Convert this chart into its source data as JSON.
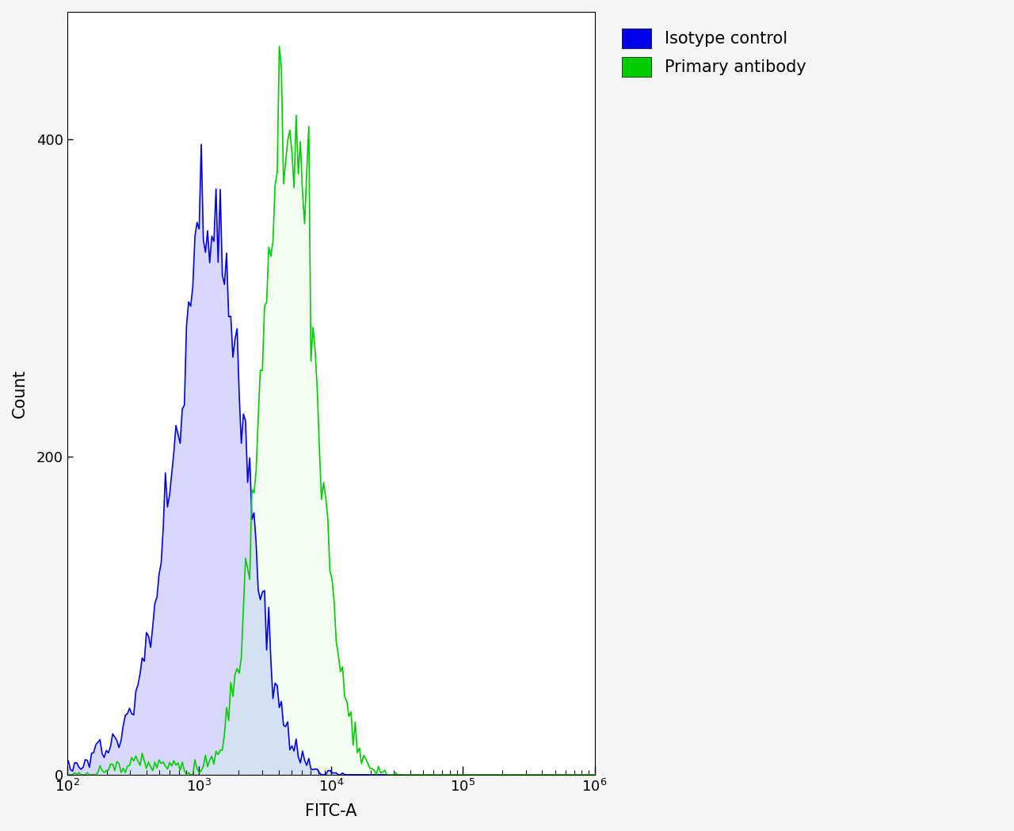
{
  "isotype_color": "#0000EE",
  "antibody_color": "#00CC00",
  "isotype_fill": "#AAAAFF",
  "antibody_fill": "#CCFFCC",
  "isotype_fill_alpha": 0.45,
  "antibody_fill_alpha": 0.25,
  "isotype_label": "Isotype control",
  "antibody_label": "Primary antibody",
  "xlabel": "FITC-A",
  "ylabel": "Count",
  "xlim_log": [
    2,
    6
  ],
  "ylim": [
    0,
    480
  ],
  "yticks": [
    0,
    200,
    400
  ],
  "background_color": "#F5F5F5",
  "plot_bg_color": "#FFFFFF",
  "isotype_peak_log": 3.08,
  "isotype_peak_count": 370,
  "isotype_sigma_log": 0.27,
  "antibody_peak_log": 3.68,
  "antibody_peak_count": 405,
  "antibody_sigma_log": 0.21,
  "noise_sigma": 0.05,
  "line_width": 1.2,
  "legend_fontsize": 15,
  "axis_fontsize": 15,
  "tick_fontsize": 13,
  "n_bins": 250,
  "iso_n": 12000,
  "ab_n": 10000
}
